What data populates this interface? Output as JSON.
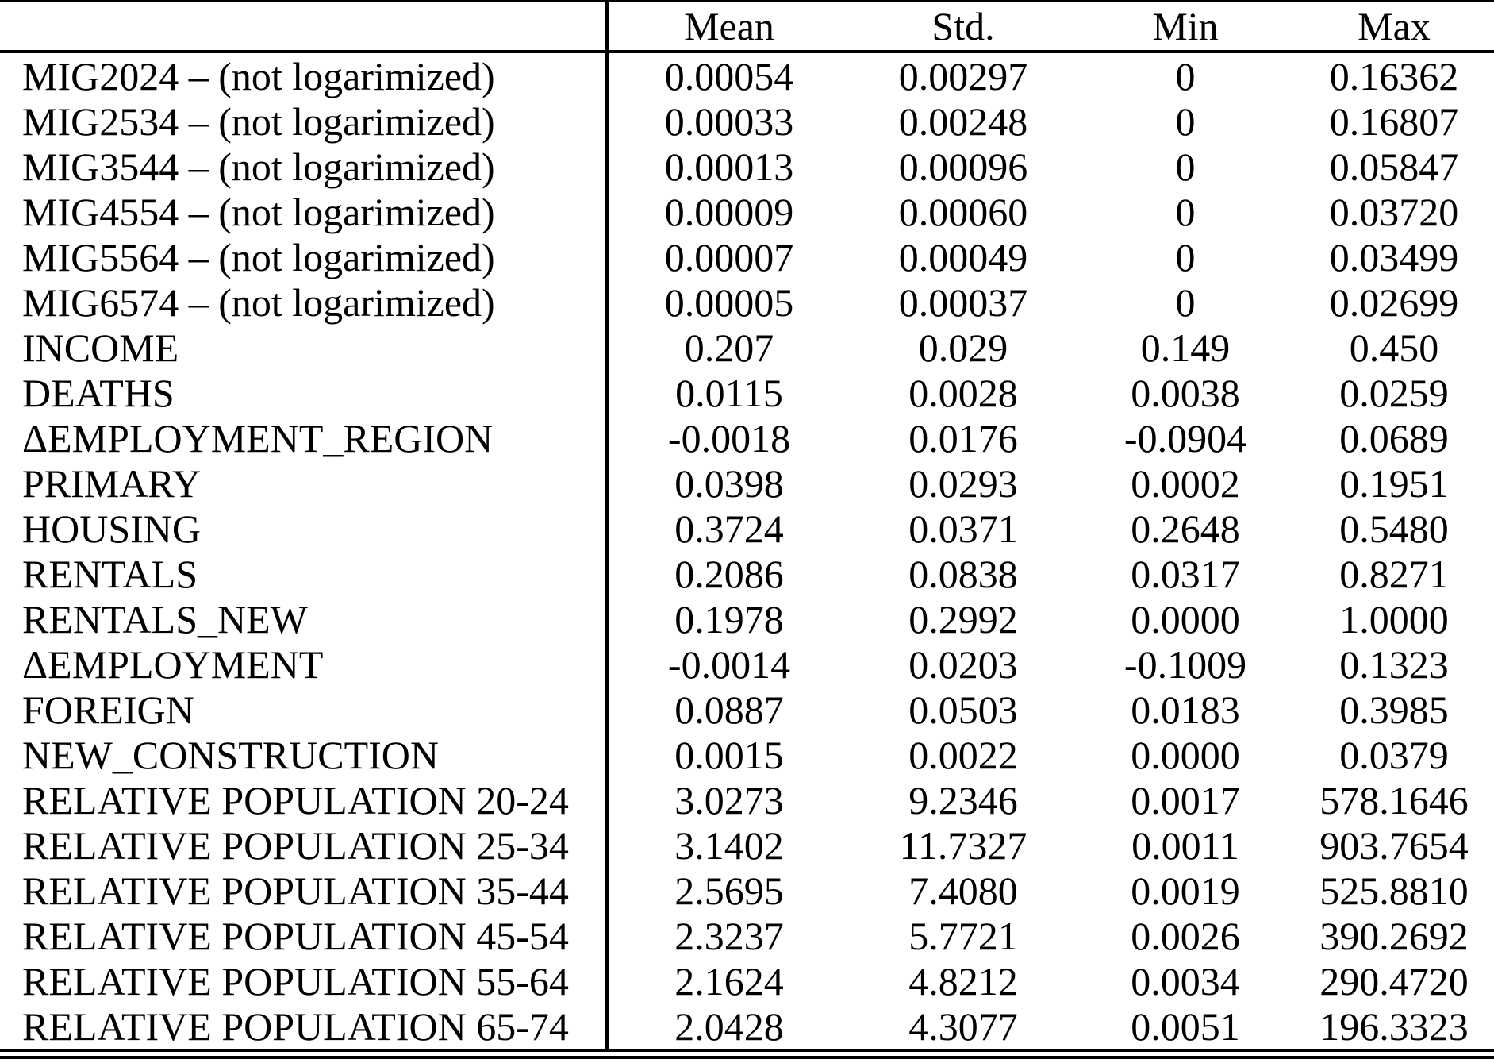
{
  "colors": {
    "text": "#000000",
    "background": "#ffffff",
    "rule": "#000000"
  },
  "table": {
    "columns": [
      "",
      "Mean",
      "Std.",
      "Min",
      "Max"
    ],
    "rows": [
      {
        "label": "MIG2024 – (not logarimized)",
        "mean": "0.00054",
        "std": "0.00297",
        "min": "0",
        "max": "0.16362"
      },
      {
        "label": "MIG2534 – (not logarimized)",
        "mean": "0.00033",
        "std": "0.00248",
        "min": "0",
        "max": "0.16807"
      },
      {
        "label": "MIG3544 – (not logarimized)",
        "mean": "0.00013",
        "std": "0.00096",
        "min": "0",
        "max": "0.05847"
      },
      {
        "label": "MIG4554 – (not logarimized)",
        "mean": "0.00009",
        "std": "0.00060",
        "min": "0",
        "max": "0.03720"
      },
      {
        "label": "MIG5564 – (not logarimized)",
        "mean": "0.00007",
        "std": "0.00049",
        "min": "0",
        "max": "0.03499"
      },
      {
        "label": "MIG6574 – (not logarimized)",
        "mean": "0.00005",
        "std": "0.00037",
        "min": "0",
        "max": "0.02699"
      },
      {
        "label": "INCOME",
        "mean": "0.207",
        "std": "0.029",
        "min": "0.149",
        "max": "0.450"
      },
      {
        "label": "DEATHS",
        "mean": "0.0115",
        "std": "0.0028",
        "min": "0.0038",
        "max": "0.0259"
      },
      {
        "label": "ΔEMPLOYMENT_REGION",
        "mean": "-0.0018",
        "std": "0.0176",
        "min": "-0.0904",
        "max": "0.0689"
      },
      {
        "label": "PRIMARY",
        "mean": "0.0398",
        "std": "0.0293",
        "min": "0.0002",
        "max": "0.1951"
      },
      {
        "label": "HOUSING",
        "mean": "0.3724",
        "std": "0.0371",
        "min": "0.2648",
        "max": "0.5480"
      },
      {
        "label": "RENTALS",
        "mean": "0.2086",
        "std": "0.0838",
        "min": "0.0317",
        "max": "0.8271"
      },
      {
        "label": "RENTALS_NEW",
        "mean": "0.1978",
        "std": "0.2992",
        "min": "0.0000",
        "max": "1.0000"
      },
      {
        "label": "ΔEMPLOYMENT",
        "mean": "-0.0014",
        "std": "0.0203",
        "min": "-0.1009",
        "max": "0.1323"
      },
      {
        "label": "FOREIGN",
        "mean": "0.0887",
        "std": "0.0503",
        "min": "0.0183",
        "max": "0.3985"
      },
      {
        "label": "NEW_CONSTRUCTION",
        "mean": "0.0015",
        "std": "0.0022",
        "min": "0.0000",
        "max": "0.0379"
      },
      {
        "label": "RELATIVE POPULATION 20-24",
        "mean": "3.0273",
        "std": "9.2346",
        "min": "0.0017",
        "max": "578.1646"
      },
      {
        "label": "RELATIVE POPULATION 25-34",
        "mean": "3.1402",
        "std": "11.7327",
        "min": "0.0011",
        "max": "903.7654"
      },
      {
        "label": "RELATIVE POPULATION 35-44",
        "mean": "2.5695",
        "std": "7.4080",
        "min": "0.0019",
        "max": "525.8810"
      },
      {
        "label": "RELATIVE POPULATION 45-54",
        "mean": "2.3237",
        "std": "5.7721",
        "min": "0.0026",
        "max": "390.2692"
      },
      {
        "label": "RELATIVE POPULATION 55-64",
        "mean": "2.1624",
        "std": "4.8212",
        "min": "0.0034",
        "max": "290.4720"
      },
      {
        "label": "RELATIVE POPULATION 65-74",
        "mean": "2.0428",
        "std": "4.3077",
        "min": "0.0051",
        "max": "196.3323"
      }
    ]
  }
}
